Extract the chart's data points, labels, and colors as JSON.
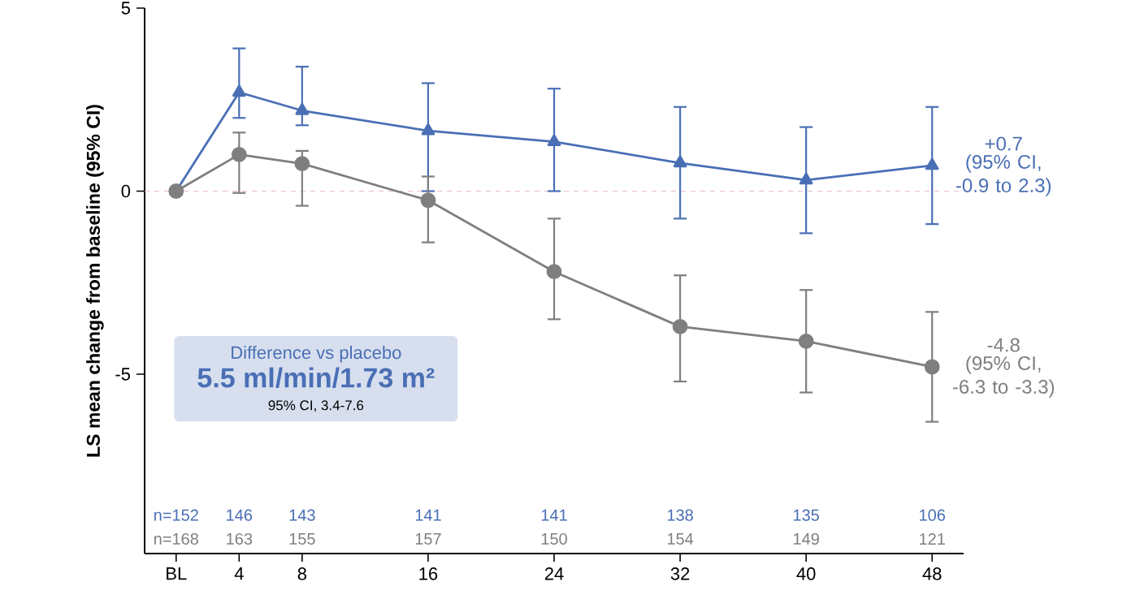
{
  "chart_data": {
    "type": "line",
    "ylabel": "LS mean change from baseline (95% CI)",
    "x": [
      0,
      4,
      8,
      16,
      24,
      32,
      40,
      48
    ],
    "xlim": [
      -2,
      50
    ],
    "ylim": [
      -9.9,
      5
    ],
    "xticks": [
      {
        "value": 0,
        "label": "BL"
      },
      4,
      8,
      16,
      24,
      32,
      40,
      48
    ],
    "yticks": [
      -5,
      0,
      5
    ],
    "series": [
      {
        "color": "#4a6fb5",
        "marker": "triangle",
        "values": [
          0,
          2.7,
          2.2,
          1.65,
          1.35,
          0.77,
          0.3,
          0.7
        ],
        "errors": [
          null,
          [
            2.0,
            3.9
          ],
          [
            1.8,
            3.4
          ],
          [
            0.0,
            2.95
          ],
          [
            0.0,
            2.8
          ],
          [
            -0.75,
            2.3
          ],
          [
            -1.15,
            1.75
          ],
          [
            -0.9,
            2.3
          ]
        ]
      },
      {
        "color": "#7f7f7f",
        "marker": "circle",
        "values": [
          0,
          1.0,
          0.75,
          -0.25,
          -2.2,
          -3.7,
          -4.1,
          -4.8
        ],
        "errors": [
          null,
          [
            -0.05,
            1.6
          ],
          [
            -0.4,
            1.1
          ],
          [
            -1.4,
            0.4
          ],
          [
            -3.5,
            -0.75
          ],
          [
            -5.2,
            -2.3
          ],
          [
            -5.5,
            -2.7
          ],
          [
            -6.3,
            -3.3
          ]
        ]
      }
    ],
    "ref_lines": [
      {
        "axis": "y",
        "value": 0,
        "color": "#e6bccb",
        "line_style": "dashed"
      }
    ],
    "annotations": [
      "Difference vs placebo",
      "5.5 ml/min/1.73 m²",
      "95% CI, 3.4-7.6",
      "+0.7",
      "(95% CI, -0.9 to 2.3)",
      "-4.8",
      "(95% CI, -6.3 to -3.3)",
      "n=152",
      "146",
      "143",
      "141",
      "141",
      "138",
      "135",
      "106",
      "n=168",
      "163",
      "155",
      "157",
      "150",
      "154",
      "149",
      "121"
    ]
  }
}
